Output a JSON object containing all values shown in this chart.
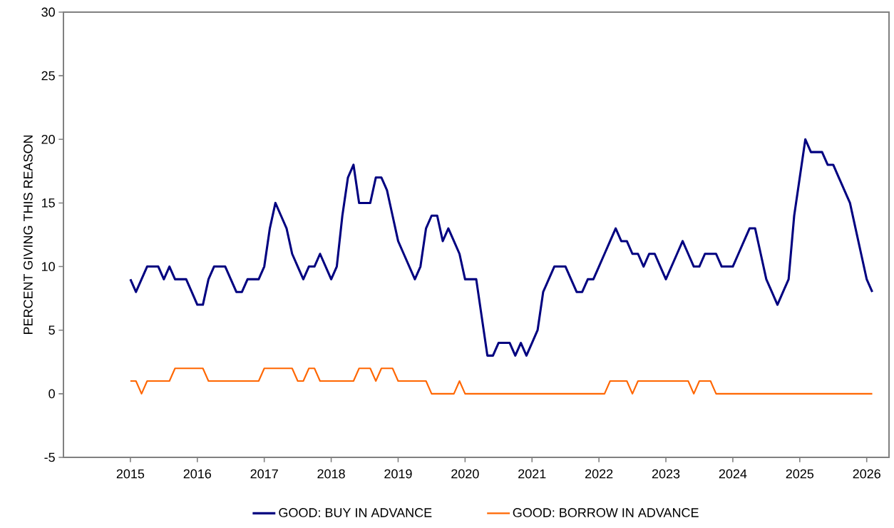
{
  "chart_data": {
    "type": "line",
    "ylabel": "PERCENT GIVING THIS REASON",
    "x": [
      "2015-01",
      "2015-02",
      "2015-03",
      "2015-04",
      "2015-05",
      "2015-06",
      "2015-07",
      "2015-08",
      "2015-09",
      "2015-10",
      "2015-11",
      "2015-12",
      "2016-01",
      "2016-02",
      "2016-03",
      "2016-04",
      "2016-05",
      "2016-06",
      "2016-07",
      "2016-08",
      "2016-09",
      "2016-10",
      "2016-11",
      "2016-12",
      "2017-01",
      "2017-02",
      "2017-03",
      "2017-04",
      "2017-05",
      "2017-06",
      "2017-07",
      "2017-08",
      "2017-09",
      "2017-10",
      "2017-11",
      "2017-12",
      "2018-01",
      "2018-02",
      "2018-03",
      "2018-04",
      "2018-05",
      "2018-06",
      "2018-07",
      "2018-08",
      "2018-09",
      "2018-10",
      "2018-11",
      "2018-12",
      "2019-01",
      "2019-02",
      "2019-03",
      "2019-04",
      "2019-05",
      "2019-06",
      "2019-07",
      "2019-08",
      "2019-09",
      "2019-10",
      "2019-11",
      "2019-12",
      "2020-01",
      "2020-02",
      "2020-03",
      "2020-04",
      "2020-05",
      "2020-06",
      "2020-07",
      "2020-08",
      "2020-09",
      "2020-10",
      "2020-11",
      "2020-12",
      "2021-01",
      "2021-02",
      "2021-03",
      "2021-04",
      "2021-05",
      "2021-06",
      "2021-07",
      "2021-08",
      "2021-09",
      "2021-10",
      "2021-11",
      "2021-12",
      "2022-01",
      "2022-02",
      "2022-03",
      "2022-04",
      "2022-05",
      "2022-06",
      "2022-07",
      "2022-08",
      "2022-09",
      "2022-10",
      "2022-11",
      "2022-12",
      "2023-01",
      "2023-02",
      "2023-03",
      "2023-04",
      "2023-05",
      "2023-06",
      "2023-07",
      "2023-08",
      "2023-09",
      "2023-10",
      "2023-11",
      "2023-12",
      "2024-01",
      "2024-02",
      "2024-03",
      "2024-04",
      "2024-05",
      "2024-06",
      "2024-07",
      "2024-08",
      "2024-09",
      "2024-10",
      "2024-11",
      "2024-12",
      "2025-01",
      "2025-02",
      "2025-03",
      "2025-04",
      "2025-05",
      "2025-06",
      "2025-07",
      "2025-08",
      "2025-09",
      "2025-10",
      "2025-11",
      "2025-12",
      "2026-01",
      "2026-02"
    ],
    "series": [
      {
        "name": "GOOD: BUY IN ADVANCE",
        "color": "#000080",
        "values": [
          9,
          8,
          9,
          10,
          10,
          10,
          9,
          10,
          9,
          9,
          9,
          8,
          7,
          7,
          9,
          10,
          10,
          10,
          9,
          8,
          8,
          9,
          9,
          9,
          10,
          13,
          15,
          14,
          13,
          11,
          10,
          9,
          10,
          10,
          11,
          10,
          9,
          10,
          14,
          17,
          18,
          15,
          15,
          15,
          17,
          17,
          16,
          14,
          12,
          11,
          10,
          9,
          10,
          13,
          14,
          14,
          12,
          13,
          12,
          11,
          9,
          9,
          9,
          6,
          3,
          3,
          4,
          4,
          4,
          3,
          4,
          3,
          4,
          5,
          8,
          9,
          10,
          10,
          10,
          9,
          8,
          8,
          9,
          9,
          10,
          11,
          12,
          13,
          12,
          12,
          11,
          11,
          10,
          11,
          11,
          10,
          9,
          10,
          11,
          12,
          11,
          10,
          10,
          11,
          11,
          11,
          10,
          10,
          10,
          11,
          12,
          13,
          13,
          11,
          9,
          8,
          7,
          8,
          9,
          14,
          17,
          20,
          19,
          19,
          19,
          18,
          18,
          17,
          16,
          15,
          13,
          11,
          9,
          8
        ]
      },
      {
        "name": "GOOD: BORROW IN ADVANCE",
        "color": "#ff6600",
        "values": [
          1,
          1,
          0,
          1,
          1,
          1,
          1,
          1,
          2,
          2,
          2,
          2,
          2,
          2,
          1,
          1,
          1,
          1,
          1,
          1,
          1,
          1,
          1,
          1,
          2,
          2,
          2,
          2,
          2,
          2,
          1,
          1,
          2,
          2,
          1,
          1,
          1,
          1,
          1,
          1,
          1,
          2,
          2,
          2,
          1,
          2,
          2,
          2,
          1,
          1,
          1,
          1,
          1,
          1,
          0,
          0,
          0,
          0,
          0,
          1,
          0,
          0,
          0,
          0,
          0,
          0,
          0,
          0,
          0,
          0,
          0,
          0,
          0,
          0,
          0,
          0,
          0,
          0,
          0,
          0,
          0,
          0,
          0,
          0,
          0,
          0,
          1,
          1,
          1,
          1,
          0,
          1,
          1,
          1,
          1,
          1,
          1,
          1,
          1,
          1,
          1,
          0,
          1,
          1,
          1,
          0,
          0,
          0,
          0,
          0,
          0,
          0,
          0,
          0,
          0,
          0,
          0,
          0,
          0,
          0,
          0,
          0,
          0,
          0,
          0,
          0,
          0,
          0,
          0,
          0,
          0,
          0,
          0,
          0
        ]
      }
    ],
    "xlim": [
      "2014",
      "2026-05"
    ],
    "xticks": [
      "2015",
      "2016",
      "2017",
      "2018",
      "2019",
      "2020",
      "2021",
      "2022",
      "2023",
      "2024",
      "2025",
      "2026"
    ],
    "ylim": [
      -5,
      30
    ],
    "yticks": [
      -5,
      0,
      5,
      10,
      15,
      20,
      25,
      30
    ],
    "legend": "bottom"
  }
}
